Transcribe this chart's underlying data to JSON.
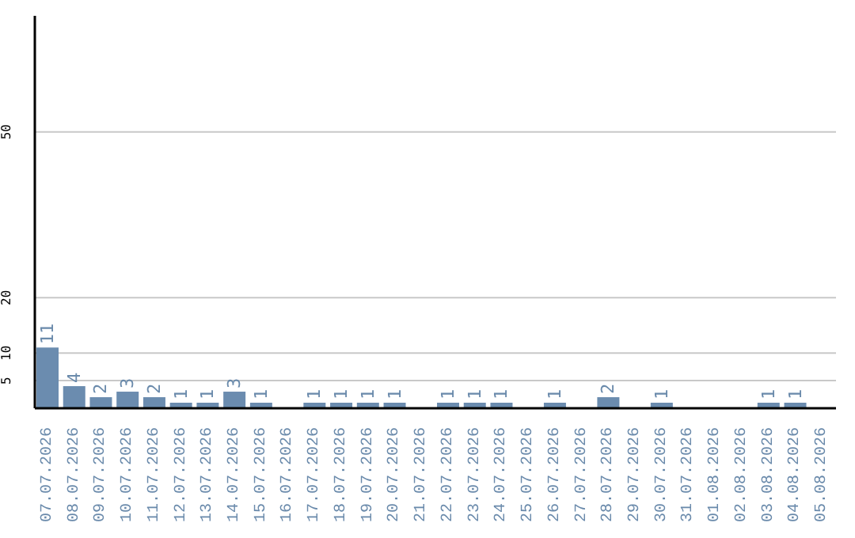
{
  "chart_data": {
    "type": "bar",
    "categories": [
      "07.07.2026",
      "08.07.2026",
      "09.07.2026",
      "10.07.2026",
      "11.07.2026",
      "12.07.2026",
      "13.07.2026",
      "14.07.2026",
      "15.07.2026",
      "16.07.2026",
      "17.07.2026",
      "18.07.2026",
      "19.07.2026",
      "20.07.2026",
      "21.07.2026",
      "22.07.2026",
      "23.07.2026",
      "24.07.2026",
      "25.07.2026",
      "26.07.2026",
      "27.07.2026",
      "28.07.2026",
      "29.07.2026",
      "30.07.2026",
      "31.07.2026",
      "01.08.2026",
      "02.08.2026",
      "03.08.2026",
      "04.08.2026",
      "05.08.2026"
    ],
    "values": [
      11,
      4,
      2,
      3,
      2,
      1,
      1,
      3,
      1,
      null,
      1,
      1,
      1,
      1,
      null,
      1,
      1,
      1,
      null,
      1,
      null,
      2,
      null,
      1,
      null,
      null,
      null,
      1,
      1,
      null
    ],
    "color": "#6b8caf",
    "ylim": [
      0,
      71
    ],
    "yticks": [
      5,
      10,
      20,
      50
    ],
    "grid": "y",
    "data_labels": true
  }
}
